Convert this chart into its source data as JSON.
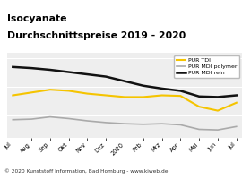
{
  "title_line1": "Isocyanate",
  "title_line2": "Durchschnittspreise 2019 - 2020",
  "title_bg": "#f5c400",
  "footer": "© 2020 Kunststoff Information, Bad Homburg - www.kiweb.de",
  "footer_bg": "#c8c8c8",
  "x_labels": [
    "Jul",
    "Aug",
    "Sep",
    "Okt",
    "Nov",
    "Dez",
    "2020",
    "Feb",
    "Mrz",
    "Apr",
    "Mai",
    "Jun",
    "Jul"
  ],
  "tdi": [
    1.85,
    1.9,
    1.95,
    1.93,
    1.88,
    1.85,
    1.82,
    1.82,
    1.85,
    1.84,
    1.65,
    1.58,
    1.72
  ],
  "mdi_polymer": [
    1.42,
    1.43,
    1.47,
    1.44,
    1.4,
    1.37,
    1.35,
    1.34,
    1.35,
    1.33,
    1.25,
    1.24,
    1.3
  ],
  "mdi_rein": [
    2.35,
    2.33,
    2.3,
    2.26,
    2.22,
    2.18,
    2.1,
    2.02,
    1.97,
    1.93,
    1.83,
    1.82,
    1.85
  ],
  "tdi_color": "#f5c400",
  "mdi_polymer_color": "#aaaaaa",
  "mdi_rein_color": "#111111",
  "plot_bg": "#eeeeee",
  "grid_color": "#ffffff",
  "ylim": [
    1.1,
    2.6
  ],
  "legend_labels": [
    "PUR TDI",
    "PUR MDI polymer",
    "PUR MDI rein"
  ],
  "title_fontsize": 7.8,
  "tick_fontsize": 4.8,
  "legend_fontsize": 4.5,
  "footer_fontsize": 4.2
}
